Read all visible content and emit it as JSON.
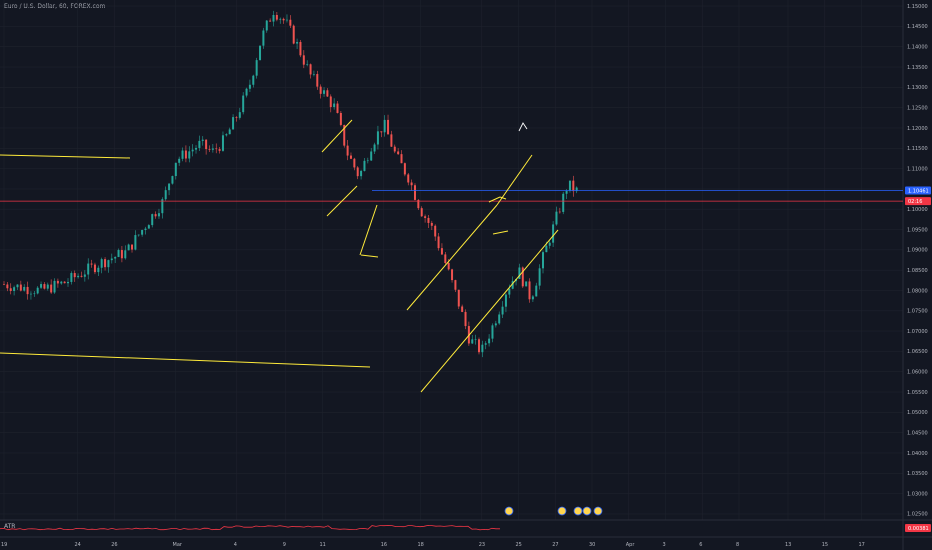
{
  "header": {
    "title": "Euro / U.S. Dollar, 60, FOREX.com"
  },
  "indicator": {
    "name": "ATR",
    "value_label": "0.00381",
    "color": "#f23645"
  },
  "colors": {
    "background": "#131722",
    "grid": "#1e222d",
    "up": "#26a69a",
    "down": "#ef5350",
    "drawing_yellow": "#ffeb3b",
    "level_blue": "#2962ff",
    "level_red": "#f23645",
    "text": "#b2b5be"
  },
  "chart_data": {
    "type": "candlestick",
    "symbol": "Euro / U.S. Dollar",
    "timeframe": "60",
    "source": "FOREX.com",
    "ylim": [
      1.02,
      1.15
    ],
    "y_ticks": [
      "1.15000",
      "1.14500",
      "1.14000",
      "1.13500",
      "1.13000",
      "1.12500",
      "1.12000",
      "1.11500",
      "1.11000",
      "1.10500",
      "1.10000",
      "1.09500",
      "1.09000",
      "1.08500",
      "1.08000",
      "1.07500",
      "1.07000",
      "1.06500",
      "1.06000",
      "1.05500",
      "1.05000",
      "1.04500",
      "1.04000",
      "1.03500",
      "1.03000",
      "1.02500"
    ],
    "x_ticks": [
      "19",
      "24",
      "26",
      "Mar",
      "4",
      "9",
      "11",
      "16",
      "18",
      "23",
      "25",
      "27",
      "30",
      "Apr",
      "3",
      "6",
      "8",
      "13",
      "15",
      "17"
    ],
    "x_tick_days": [
      0,
      6,
      9,
      14,
      19,
      23,
      26,
      31,
      34,
      39,
      42,
      45,
      48,
      51,
      54,
      57,
      60,
      64,
      67,
      70
    ],
    "price_path": [
      [
        0,
        1.0815
      ],
      [
        3,
        1.08
      ],
      [
        5,
        1.082
      ],
      [
        8,
        1.087
      ],
      [
        10,
        1.0895
      ],
      [
        12,
        1.098
      ],
      [
        13,
        1.102
      ],
      [
        14,
        1.112
      ],
      [
        16,
        1.116
      ],
      [
        17,
        1.114
      ],
      [
        18,
        1.117
      ],
      [
        19,
        1.123
      ],
      [
        20,
        1.13
      ],
      [
        21,
        1.142
      ],
      [
        22,
        1.149
      ],
      [
        23,
        1.146
      ],
      [
        24,
        1.14
      ],
      [
        25,
        1.133
      ],
      [
        26,
        1.129
      ],
      [
        27,
        1.125
      ],
      [
        28,
        1.114
      ],
      [
        29,
        1.108
      ],
      [
        30,
        1.116
      ],
      [
        31,
        1.121
      ],
      [
        32,
        1.113
      ],
      [
        33,
        1.108
      ],
      [
        34,
        1.1
      ],
      [
        35,
        1.095
      ],
      [
        36,
        1.087
      ],
      [
        37,
        1.078
      ],
      [
        38,
        1.068
      ],
      [
        39,
        1.065
      ],
      [
        40,
        1.072
      ],
      [
        41,
        1.08
      ],
      [
        42,
        1.085
      ],
      [
        43,
        1.078
      ],
      [
        44,
        1.088
      ],
      [
        45,
        1.097
      ],
      [
        46,
        1.106
      ],
      [
        47,
        1.104
      ]
    ],
    "horizontal_levels": [
      {
        "price": "1.10461",
        "color": "#2962ff"
      },
      {
        "price": "1.10200",
        "color": "#f23645"
      }
    ],
    "price_tags": [
      {
        "label": "1.10461",
        "color": "#2962ff"
      },
      {
        "label": "02:16",
        "color": "#f23645"
      }
    ],
    "annotations": "hand-drawn yellow trend lines and rising channel",
    "grid": true
  }
}
